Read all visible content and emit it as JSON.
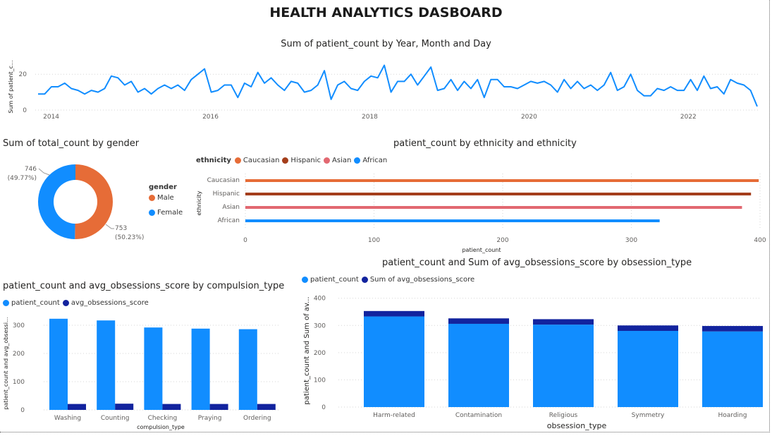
{
  "dashboard_title": "HEALTH ANALYTICS DASBOARD",
  "colors": {
    "blue": "#118DFF",
    "dark_blue": "#12239E",
    "orange": "#E66C37",
    "brown": "#A43E1B",
    "pink": "#E26871"
  },
  "chart_data": [
    {
      "id": "timeline",
      "type": "line",
      "title": "Sum of patient_count by Year, Month and Day",
      "xlabel": "",
      "ylabel": "Sum of patient_c...",
      "x_ticks": [
        "2014",
        "2016",
        "2018",
        "2020",
        "2022"
      ],
      "y_ticks": [
        "0",
        "20"
      ],
      "ylim": [
        0,
        26
      ],
      "x_start": 2013.8,
      "x_end": 2022.9,
      "values": [
        9,
        9,
        13,
        13,
        15,
        12,
        11,
        9,
        11,
        10,
        12,
        19,
        18,
        14,
        16,
        10,
        12,
        9,
        12,
        14,
        12,
        14,
        11,
        17,
        20,
        23,
        10,
        11,
        14,
        14,
        7,
        15,
        13,
        21,
        15,
        18,
        14,
        11,
        16,
        15,
        10,
        11,
        14,
        22,
        6,
        14,
        16,
        12,
        11,
        16,
        19,
        18,
        25,
        10,
        16,
        16,
        20,
        14,
        19,
        24,
        11,
        12,
        17,
        11,
        16,
        12,
        17,
        7,
        17,
        17,
        13,
        13,
        12,
        14,
        16,
        15,
        16,
        14,
        10,
        17,
        12,
        16,
        12,
        14,
        11,
        14,
        21,
        11,
        13,
        20,
        11,
        8,
        8,
        12,
        11,
        13,
        11,
        11,
        17,
        11,
        19,
        12,
        13,
        9,
        17,
        15,
        14,
        11,
        2
      ]
    },
    {
      "id": "gender",
      "type": "pie",
      "title": "Sum of total_count by gender",
      "legend_title": "gender",
      "slices": [
        {
          "name": "Male",
          "value": 753,
          "label": "753",
          "pct": "(50.23%)",
          "color": "#E66C37"
        },
        {
          "name": "Female",
          "value": 746,
          "label": "746",
          "pct": "(49.77%)",
          "color": "#118DFF"
        }
      ]
    },
    {
      "id": "ethnicity",
      "type": "bar",
      "orientation": "horizontal",
      "title": "patient_count by ethnicity and ethnicity",
      "legend_title": "ethnicity",
      "xlabel": "patient_count",
      "ylabel": "ethnicity",
      "xlim": [
        0,
        400
      ],
      "x_ticks": [
        "0",
        "100",
        "200",
        "300",
        "400"
      ],
      "categories": [
        "Caucasian",
        "Hispanic",
        "Asian",
        "African"
      ],
      "values": [
        399,
        393,
        386,
        322
      ],
      "series_colors": [
        "#E66C37",
        "#A43E1B",
        "#E26871",
        "#118DFF"
      ]
    },
    {
      "id": "compulsion",
      "type": "bar",
      "title": "patient_count and avg_obsessions_score by compulsion_type",
      "xlabel": "compulsion_type",
      "ylabel": "patient_count and avg_obsessi...",
      "ylim": [
        0,
        340
      ],
      "y_ticks": [
        "0",
        "100",
        "200",
        "300"
      ],
      "categories": [
        "Washing",
        "Counting",
        "Checking",
        "Praying",
        "Ordering"
      ],
      "series": [
        {
          "name": "patient_count",
          "color": "#118DFF",
          "values": [
            323,
            317,
            292,
            288,
            286
          ]
        },
        {
          "name": "avg_obsessions_score",
          "color": "#12239E",
          "values": [
            21,
            22,
            21,
            21,
            21
          ]
        }
      ]
    },
    {
      "id": "obsession",
      "type": "bar",
      "stacked": true,
      "title": "patient_count and Sum of avg_obsessions_score by obsession_type",
      "xlabel": "obsession_type",
      "ylabel": "patient_count and Sum of av...",
      "ylim": [
        0,
        420
      ],
      "y_ticks": [
        "0",
        "100",
        "200",
        "300",
        "400"
      ],
      "categories": [
        "Harm-related",
        "Contamination",
        "Religious",
        "Symmetry",
        "Hoarding"
      ],
      "series": [
        {
          "name": "patient_count",
          "color": "#118DFF",
          "values": [
            333,
            306,
            303,
            280,
            278
          ]
        },
        {
          "name": "Sum of avg_obsessions_score",
          "color": "#12239E",
          "values": [
            20,
            20,
            20,
            20,
            20
          ]
        }
      ]
    }
  ]
}
